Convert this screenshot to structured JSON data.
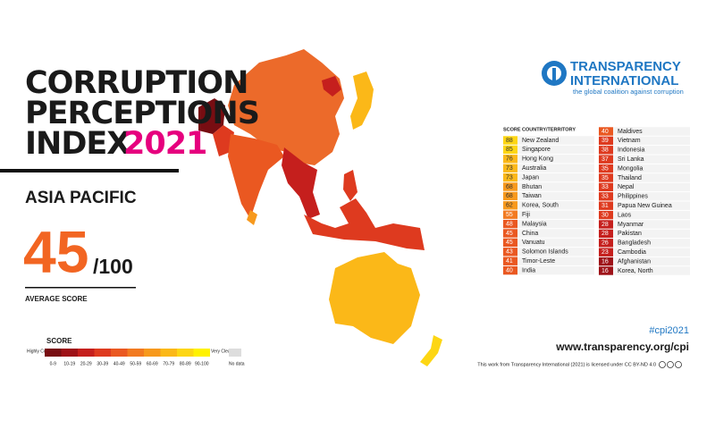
{
  "header": {
    "title_lines": [
      "CORRUPTION",
      "PERCEPTIONS",
      "INDEX"
    ],
    "year": "2021",
    "region": "ASIA PACIFIC",
    "average_score": 45,
    "score_max": "/100",
    "average_label": "AVERAGE SCORE"
  },
  "logo": {
    "name_lines": [
      "TRANSPARENCY",
      "INTERNATIONAL"
    ],
    "tagline": "the global coalition against corruption"
  },
  "legend": {
    "title": "SCORE",
    "low_label": "Highly Corrupt",
    "high_label": "Very Clean",
    "no_data": "No data",
    "bins": [
      {
        "label": "0-9",
        "color": "#780d12"
      },
      {
        "label": "10-19",
        "color": "#9e1218"
      },
      {
        "label": "20-29",
        "color": "#c51f1d"
      },
      {
        "label": "30-39",
        "color": "#de3a1f"
      },
      {
        "label": "40-49",
        "color": "#ea5821"
      },
      {
        "label": "50-59",
        "color": "#f27a21"
      },
      {
        "label": "60-69",
        "color": "#f7991d"
      },
      {
        "label": "70-79",
        "color": "#fbb818"
      },
      {
        "label": "80-89",
        "color": "#fdd614"
      },
      {
        "label": "90-100",
        "color": "#fff200"
      }
    ]
  },
  "table": {
    "headers": [
      "SCORE",
      "COUNTRY/TERRITORY"
    ],
    "columns": [
      [
        {
          "score": 88,
          "country": "New Zealand"
        },
        {
          "score": 85,
          "country": "Singapore"
        },
        {
          "score": 76,
          "country": "Hong Kong"
        },
        {
          "score": 73,
          "country": "Australia"
        },
        {
          "score": 73,
          "country": "Japan"
        },
        {
          "score": 68,
          "country": "Bhutan"
        },
        {
          "score": 68,
          "country": "Taiwan"
        },
        {
          "score": 62,
          "country": "Korea, South"
        },
        {
          "score": 55,
          "country": "Fiji"
        },
        {
          "score": 48,
          "country": "Malaysia"
        },
        {
          "score": 45,
          "country": "China"
        },
        {
          "score": 45,
          "country": "Vanuatu"
        },
        {
          "score": 43,
          "country": "Solomon Islands"
        },
        {
          "score": 41,
          "country": "Timor-Leste"
        },
        {
          "score": 40,
          "country": "India"
        }
      ],
      [
        {
          "score": 40,
          "country": "Maldives"
        },
        {
          "score": 39,
          "country": "Vietnam"
        },
        {
          "score": 38,
          "country": "Indonesia"
        },
        {
          "score": 37,
          "country": "Sri Lanka"
        },
        {
          "score": 35,
          "country": "Mongolia"
        },
        {
          "score": 35,
          "country": "Thailand"
        },
        {
          "score": 33,
          "country": "Nepal"
        },
        {
          "score": 33,
          "country": "Philippines"
        },
        {
          "score": 31,
          "country": "Papua New Guinea"
        },
        {
          "score": 30,
          "country": "Laos"
        },
        {
          "score": 28,
          "country": "Myanmar"
        },
        {
          "score": 28,
          "country": "Pakistan"
        },
        {
          "score": 26,
          "country": "Bangladesh"
        },
        {
          "score": 23,
          "country": "Cambodia"
        },
        {
          "score": 16,
          "country": "Afghanistan"
        },
        {
          "score": 16,
          "country": "Korea, North"
        }
      ]
    ]
  },
  "footer": {
    "hashtag": "#cpi2021",
    "url": "www.transparency.org/cpi",
    "license": "This work from Transparency International (2021) is licensed under CC BY-ND 4.0"
  }
}
